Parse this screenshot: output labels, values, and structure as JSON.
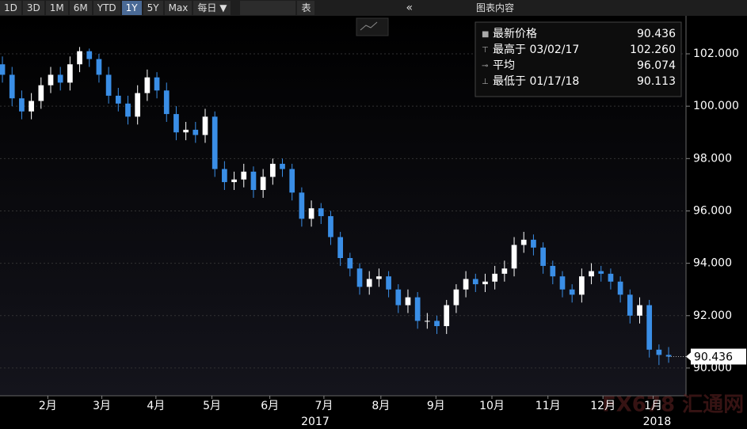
{
  "toolbar": {
    "ranges": [
      "1D",
      "3D",
      "1M",
      "6M",
      "YTD",
      "1Y",
      "5Y",
      "Max"
    ],
    "active_range": "1Y",
    "frequency": "每日 ▼",
    "table": "表",
    "collapse": "«",
    "chart_content": "图表内容"
  },
  "watermark": "FX678 汇通网",
  "chart_data": {
    "type": "candlestick",
    "categories": [
      null,
      null,
      null,
      null,
      null,
      null,
      null,
      null,
      null,
      null,
      null,
      null,
      null,
      null,
      null,
      null,
      null,
      null,
      null,
      null,
      null,
      null,
      null,
      null,
      null,
      null,
      null,
      null,
      null,
      null,
      null,
      null,
      null,
      null,
      null,
      null,
      null,
      null,
      null,
      null,
      null,
      null,
      null,
      null,
      null,
      null,
      null,
      null,
      null,
      null,
      null,
      null,
      null,
      null,
      null,
      null,
      null,
      null,
      null,
      null,
      null,
      null,
      null,
      null,
      null,
      null,
      null,
      null,
      null,
      null
    ],
    "open": [
      101.6,
      101.2,
      100.3,
      99.8,
      100.2,
      100.8,
      101.2,
      100.9,
      101.6,
      102.1,
      101.8,
      101.2,
      100.4,
      100.1,
      99.6,
      100.5,
      101.1,
      100.6,
      99.7,
      99.0,
      99.1,
      98.9,
      99.6,
      97.6,
      97.1,
      97.2,
      97.5,
      96.8,
      97.3,
      97.8,
      97.6,
      96.7,
      95.7,
      96.1,
      95.8,
      95.0,
      94.2,
      93.8,
      93.1,
      93.4,
      93.5,
      93.0,
      92.4,
      92.7,
      91.8,
      91.8,
      91.6,
      92.4,
      93.0,
      93.4,
      93.2,
      93.3,
      93.6,
      93.8,
      94.7,
      94.9,
      94.6,
      93.9,
      93.5,
      93.0,
      92.8,
      93.5,
      93.7,
      93.6,
      93.3,
      92.8,
      92.0,
      92.4,
      90.7,
      90.5
    ],
    "high": [
      101.9,
      101.5,
      100.6,
      100.5,
      101.1,
      101.5,
      101.5,
      101.9,
      102.26,
      102.2,
      102.0,
      101.5,
      100.7,
      100.4,
      100.8,
      101.4,
      101.3,
      100.9,
      100.0,
      99.4,
      99.4,
      99.9,
      99.8,
      97.9,
      97.5,
      97.8,
      97.7,
      97.6,
      98.0,
      98.0,
      97.8,
      96.9,
      96.4,
      96.3,
      96.0,
      95.2,
      94.4,
      94.0,
      93.7,
      93.8,
      93.7,
      93.2,
      93.0,
      92.9,
      92.1,
      92.0,
      92.6,
      93.2,
      93.7,
      93.6,
      93.6,
      93.9,
      94.1,
      95.0,
      95.2,
      95.1,
      94.8,
      94.1,
      93.7,
      93.2,
      93.8,
      94.0,
      93.9,
      93.8,
      93.5,
      93.0,
      92.7,
      92.6,
      90.9,
      90.8
    ],
    "low": [
      100.9,
      100.0,
      99.5,
      99.5,
      99.9,
      100.5,
      100.6,
      100.6,
      101.3,
      101.5,
      100.9,
      100.1,
      99.8,
      99.3,
      99.3,
      100.2,
      100.3,
      99.4,
      98.7,
      98.7,
      98.6,
      98.6,
      97.3,
      96.8,
      96.8,
      96.9,
      96.5,
      96.5,
      97.0,
      97.3,
      96.4,
      95.4,
      95.4,
      95.5,
      94.7,
      93.9,
      93.5,
      92.8,
      92.8,
      93.1,
      92.7,
      92.1,
      92.1,
      91.5,
      91.5,
      91.3,
      91.3,
      92.1,
      92.7,
      92.9,
      92.9,
      93.0,
      93.3,
      93.5,
      94.4,
      94.3,
      93.6,
      93.2,
      92.7,
      92.5,
      92.5,
      93.2,
      93.3,
      93.0,
      92.5,
      91.7,
      91.7,
      90.4,
      90.113,
      90.2
    ],
    "close": [
      101.2,
      100.3,
      99.8,
      100.2,
      100.8,
      101.2,
      100.9,
      101.6,
      102.1,
      101.8,
      101.2,
      100.4,
      100.1,
      99.6,
      100.5,
      101.1,
      100.6,
      99.7,
      99.0,
      99.1,
      98.9,
      99.6,
      97.6,
      97.1,
      97.2,
      97.5,
      96.8,
      97.3,
      97.8,
      97.6,
      96.7,
      95.7,
      96.1,
      95.8,
      95.0,
      94.2,
      93.8,
      93.1,
      93.4,
      93.5,
      93.0,
      92.4,
      92.7,
      91.8,
      91.8,
      91.6,
      92.4,
      93.0,
      93.4,
      93.2,
      93.3,
      93.6,
      93.8,
      94.7,
      94.9,
      94.6,
      93.9,
      93.5,
      93.0,
      92.8,
      93.5,
      93.7,
      93.6,
      93.3,
      92.8,
      92.0,
      92.4,
      90.7,
      90.5,
      90.436
    ],
    "up_color": "#ffffff",
    "down_color": "#3a8ee6",
    "xlim": [
      -0.25,
      70.8
    ],
    "xticks": [
      {
        "value": 4.7,
        "label": "2月"
      },
      {
        "value": 10.3,
        "label": "3月"
      },
      {
        "value": 15.9,
        "label": "4月"
      },
      {
        "value": 21.7,
        "label": "5月"
      },
      {
        "value": 27.7,
        "label": "6月"
      },
      {
        "value": 33.3,
        "label": "7月"
      },
      {
        "value": 39.2,
        "label": "8月"
      },
      {
        "value": 44.9,
        "label": "9月"
      },
      {
        "value": 50.7,
        "label": "10月"
      },
      {
        "value": 56.5,
        "label": "11月"
      },
      {
        "value": 62.2,
        "label": "12月"
      },
      {
        "value": 67.4,
        "label": "1月"
      }
    ],
    "year_ticks": [
      {
        "value": 32.4,
        "label": "2017"
      },
      {
        "value": 67.8,
        "label": "2018"
      }
    ],
    "ylim": [
      88.94,
      103.3
    ],
    "yticks": [
      {
        "value": 90,
        "label": "90.000"
      },
      {
        "value": 92,
        "label": "92.000"
      },
      {
        "value": 94,
        "label": "94.000"
      },
      {
        "value": 96,
        "label": "96.000"
      },
      {
        "value": 98,
        "label": "98.000"
      },
      {
        "value": 100,
        "label": "100.000"
      },
      {
        "value": 102,
        "label": "102.000"
      }
    ],
    "grid": true,
    "last_value": 90.436,
    "stats": [
      {
        "label": "最新价格",
        "value": "90.436"
      },
      {
        "label": "最高于 03/02/17",
        "value": "102.260"
      },
      {
        "label": "平均",
        "value": "96.074"
      },
      {
        "label": "最低于 01/17/18",
        "value": "90.113"
      }
    ]
  }
}
